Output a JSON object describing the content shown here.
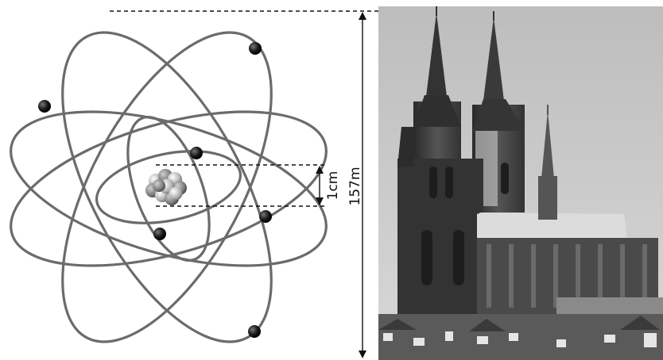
{
  "diagram": {
    "atom": {
      "label": "1cm"
    },
    "cathedral": {
      "label": "157m"
    }
  },
  "colors": {
    "orbit": "#6b6b6b",
    "electron": "#1a1a1a",
    "dash": "#111111",
    "sky": "#c9c9c9",
    "stone": "#3c3c3c"
  }
}
